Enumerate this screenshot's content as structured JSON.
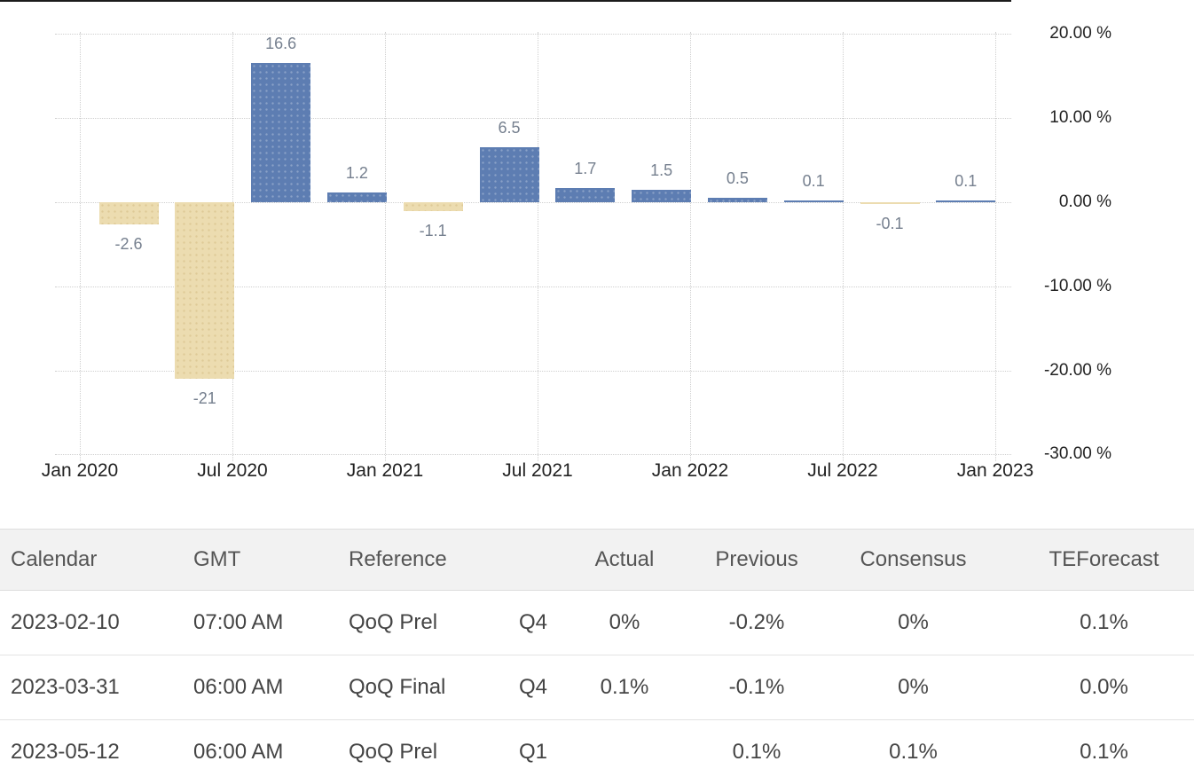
{
  "chart_data": {
    "type": "bar",
    "x": [
      "Q1 2020",
      "Q2 2020",
      "Q3 2020",
      "Q4 2020",
      "Q1 2021",
      "Q2 2021",
      "Q3 2021",
      "Q4 2021",
      "Q1 2022",
      "Q2 2022",
      "Q3 2022",
      "Q4 2022"
    ],
    "values": [
      -2.6,
      -21,
      16.6,
      1.2,
      -1.1,
      6.5,
      1.7,
      1.5,
      0.5,
      0.1,
      -0.1,
      0.1
    ],
    "bar_labels": [
      "-2.6",
      "-21",
      "16.6",
      "1.2",
      "-1.1",
      "6.5",
      "1.7",
      "1.5",
      "0.5",
      "0.1",
      "-0.1",
      "0.1"
    ],
    "x_axis_ticks": [
      "Jan 2020",
      "Jul 2020",
      "Jan 2021",
      "Jul 2021",
      "Jan 2022",
      "Jul 2022",
      "Jan 2023"
    ],
    "y_axis_ticks": [
      {
        "value": 20,
        "label": "20.00 %"
      },
      {
        "value": 10,
        "label": "10.00 %"
      },
      {
        "value": 0,
        "label": "0.00 %"
      },
      {
        "value": -10,
        "label": "-10.00 %"
      },
      {
        "value": -20,
        "label": "-20.00 %"
      },
      {
        "value": -30,
        "label": "-30.00 %"
      }
    ],
    "ylim": [
      -30,
      20
    ],
    "grid": true,
    "legend_position": "none",
    "colors": {
      "positive_bar": "#5d7db2",
      "negative_bar": "#ecdcb0",
      "grid_line": "#cfcfcf",
      "value_label": "#76808f",
      "axis_label": "#222222"
    }
  },
  "table": {
    "headers": [
      "Calendar",
      "GMT",
      "Reference",
      "",
      "Actual",
      "Previous",
      "Consensus",
      "TEForecast"
    ],
    "rows": [
      [
        "2023-02-10",
        "07:00 AM",
        "QoQ Prel",
        "Q4",
        "0%",
        "-0.2%",
        "0%",
        "0.1%"
      ],
      [
        "2023-03-31",
        "06:00 AM",
        "QoQ Final",
        "Q4",
        "0.1%",
        "-0.1%",
        "0%",
        "0.0%"
      ],
      [
        "2023-05-12",
        "06:00 AM",
        "QoQ Prel",
        "Q1",
        "",
        "0.1%",
        "0.1%",
        "0.1%"
      ]
    ]
  }
}
